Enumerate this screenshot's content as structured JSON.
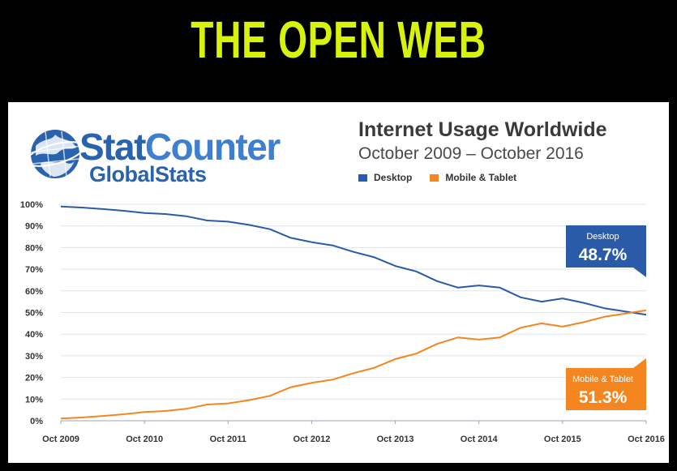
{
  "slide": {
    "title": "THE OPEN WEB"
  },
  "logo": {
    "brand_top": "StatCounter",
    "brand_bottom": "GlobalStats"
  },
  "colors": {
    "desktop": "#2a5ba8",
    "mobile": "#f5861f",
    "title": "#d7f20d",
    "grid": "#dfe5ee"
  },
  "chart_data": {
    "type": "line",
    "title": "Internet Usage Worldwide",
    "subtitle": "October 2009 – October 2016",
    "x_labels": [
      "Oct 2009",
      "Oct 2010",
      "Oct 2011",
      "Oct 2012",
      "Oct 2013",
      "Oct 2014",
      "Oct 2015",
      "Oct 2016"
    ],
    "y_ticks": [
      "0%",
      "10%",
      "20%",
      "30%",
      "40%",
      "50%",
      "60%",
      "70%",
      "80%",
      "90%",
      "100%"
    ],
    "ylim": [
      0,
      100
    ],
    "grid": true,
    "legend_position": "top",
    "series": [
      {
        "name": "Desktop",
        "color": "#2a5ba8",
        "x": [
          2009.75,
          2010.0,
          2010.25,
          2010.5,
          2010.75,
          2011.0,
          2011.25,
          2011.5,
          2011.75,
          2012.0,
          2012.25,
          2012.5,
          2012.75,
          2013.0,
          2013.25,
          2013.5,
          2013.75,
          2014.0,
          2014.25,
          2014.5,
          2014.75,
          2015.0,
          2015.25,
          2015.5,
          2015.75,
          2016.0,
          2016.25,
          2016.5,
          2016.75
        ],
        "values": [
          99,
          98.5,
          97.8,
          97,
          96,
          95.5,
          94.5,
          92.5,
          92,
          90.5,
          88.5,
          84.5,
          82.5,
          81,
          78,
          75.5,
          71.5,
          69,
          64.5,
          61.5,
          62.5,
          61.5,
          57,
          55,
          56.5,
          54.5,
          52,
          50.5,
          49
        ]
      },
      {
        "name": "Mobile & Tablet",
        "color": "#f5861f",
        "x": [
          2009.75,
          2010.0,
          2010.25,
          2010.5,
          2010.75,
          2011.0,
          2011.25,
          2011.5,
          2011.75,
          2012.0,
          2012.25,
          2012.5,
          2012.75,
          2013.0,
          2013.25,
          2013.5,
          2013.75,
          2014.0,
          2014.25,
          2014.5,
          2014.75,
          2015.0,
          2015.25,
          2015.5,
          2015.75,
          2016.0,
          2016.25,
          2016.5,
          2016.75
        ],
        "values": [
          1,
          1.5,
          2.2,
          3,
          4,
          4.5,
          5.5,
          7.5,
          8,
          9.5,
          11.5,
          15.5,
          17.5,
          19,
          22,
          24.5,
          28.5,
          31,
          35.5,
          38.5,
          37.5,
          38.5,
          43,
          45,
          43.5,
          45.5,
          48,
          49.5,
          51
        ]
      }
    ],
    "annotations": [
      {
        "series": "Desktop",
        "label": "Desktop",
        "value": "48.7%"
      },
      {
        "series": "Mobile & Tablet",
        "label": "Mobile & Tablet",
        "value": "51.3%"
      }
    ]
  }
}
